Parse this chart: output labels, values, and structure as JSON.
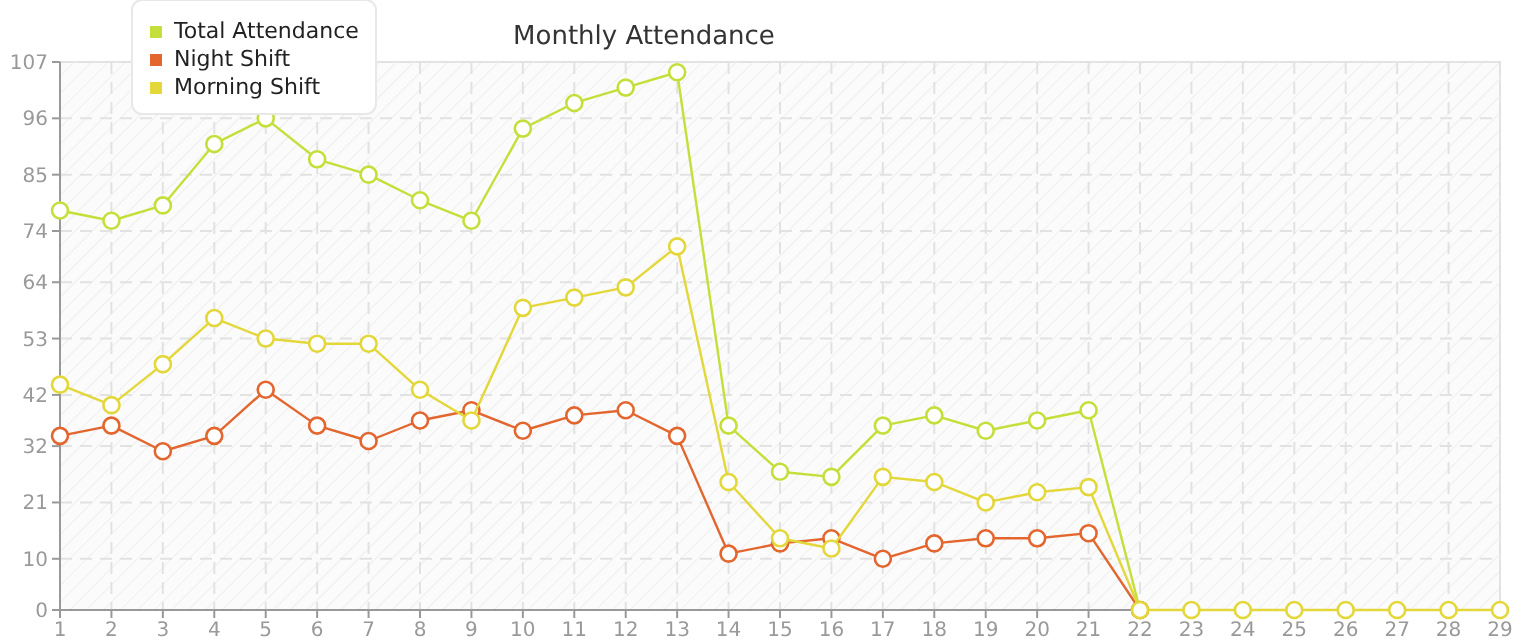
{
  "chart_data": {
    "type": "line",
    "title": "Monthly Attendance",
    "x": [
      1,
      2,
      3,
      4,
      5,
      6,
      7,
      8,
      9,
      10,
      11,
      12,
      13,
      14,
      15,
      16,
      17,
      18,
      19,
      20,
      21,
      22,
      23,
      24,
      25,
      26,
      27,
      28,
      29
    ],
    "series": [
      {
        "name": "Total Attendance",
        "color": "#c5df3a",
        "values": [
          78,
          76,
          79,
          91,
          96,
          88,
          85,
          80,
          76,
          94,
          99,
          102,
          105,
          36,
          27,
          26,
          36,
          38,
          35,
          37,
          39,
          0,
          null,
          null,
          null,
          null,
          null,
          null,
          null
        ]
      },
      {
        "name": "Night Shift",
        "color": "#e2662e",
        "values": [
          34,
          36,
          31,
          34,
          43,
          36,
          33,
          37,
          39,
          35,
          38,
          39,
          34,
          11,
          13,
          14,
          10,
          13,
          14,
          14,
          15,
          0,
          null,
          null,
          null,
          null,
          null,
          null,
          null
        ]
      },
      {
        "name": "Morning Shift",
        "color": "#e3d73a",
        "values": [
          44,
          40,
          48,
          57,
          53,
          52,
          52,
          43,
          37,
          59,
          61,
          63,
          71,
          25,
          14,
          12,
          26,
          25,
          21,
          23,
          24,
          0,
          0,
          0,
          0,
          0,
          0,
          0,
          0
        ]
      }
    ],
    "xlim": [
      1,
      29
    ],
    "xticks": [
      1,
      2,
      3,
      4,
      5,
      6,
      7,
      8,
      9,
      10,
      11,
      12,
      13,
      14,
      15,
      16,
      17,
      18,
      19,
      20,
      21,
      22,
      23,
      24,
      25,
      26,
      27,
      28,
      29
    ],
    "ylim": [
      0,
      107
    ],
    "yticks": [
      0,
      10,
      21,
      32,
      42,
      53,
      64,
      74,
      85,
      96,
      107
    ],
    "grid": true,
    "legend": "top left",
    "marker": "circle",
    "line_style": "solid"
  }
}
